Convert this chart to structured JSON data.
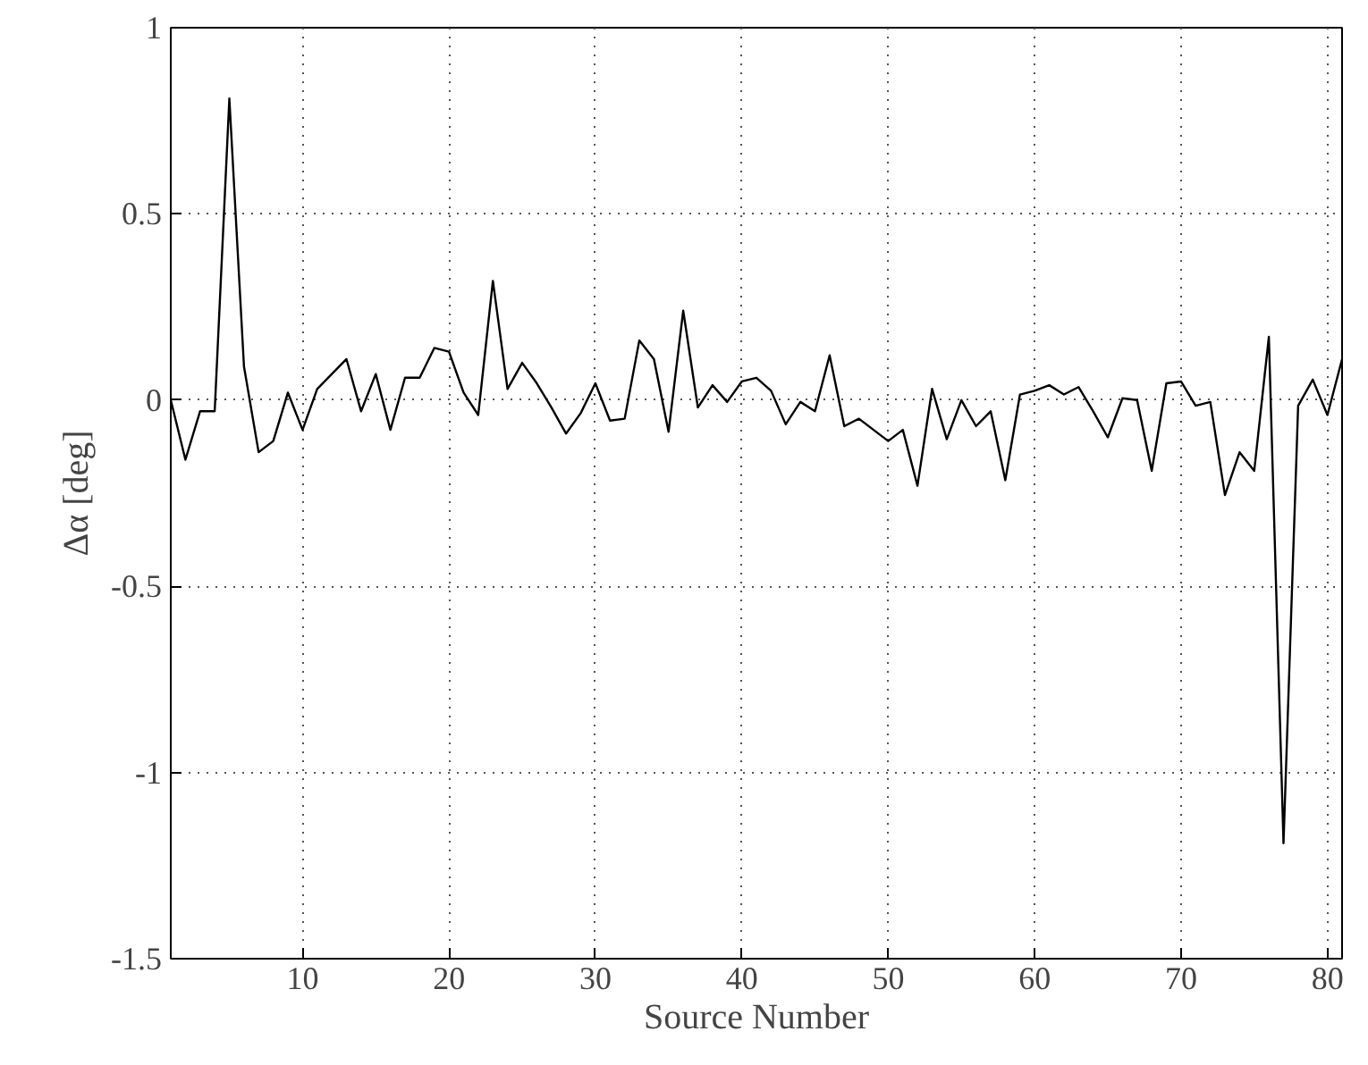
{
  "chart_data": {
    "type": "line",
    "xlabel": "Source Number",
    "ylabel": "Δα [deg]",
    "x": [
      1,
      2,
      3,
      4,
      5,
      6,
      7,
      8,
      9,
      10,
      11,
      12,
      13,
      14,
      15,
      16,
      17,
      18,
      19,
      20,
      21,
      22,
      23,
      24,
      25,
      26,
      27,
      28,
      29,
      30,
      31,
      32,
      33,
      34,
      35,
      36,
      37,
      38,
      39,
      40,
      41,
      42,
      43,
      44,
      45,
      46,
      47,
      48,
      49,
      50,
      51,
      52,
      53,
      54,
      55,
      56,
      57,
      58,
      59,
      60,
      61,
      62,
      63,
      64,
      65,
      66,
      67,
      68,
      69,
      70,
      71,
      72,
      73,
      74,
      75,
      76,
      77,
      78,
      79,
      80,
      81
    ],
    "series": [
      {
        "color": "#000000",
        "values": [
          0,
          -0.16,
          -0.03,
          -0.03,
          0.81,
          0.09,
          -0.14,
          -0.11,
          0.02,
          -0.08,
          0.03,
          0.07,
          0.11,
          -0.03,
          0.07,
          -0.08,
          0.06,
          0.06,
          0.14,
          0.13,
          0.02,
          -0.04,
          0.32,
          0.03,
          0.1,
          0.045,
          -0.02,
          -0.09,
          -0.035,
          0.045,
          -0.055,
          -0.05,
          0.16,
          0.11,
          -0.085,
          0.24,
          -0.02,
          0.04,
          -0.005,
          0.05,
          0.06,
          0.025,
          -0.065,
          -0.005,
          -0.03,
          0.12,
          -0.07,
          -0.05,
          -0.08,
          -0.11,
          -0.08,
          -0.23,
          0.03,
          -0.105,
          0,
          -0.07,
          -0.03,
          -0.215,
          0.015,
          0.025,
          0.04,
          0.015,
          0.035,
          -0.03,
          -0.1,
          0.005,
          0,
          -0.19,
          0.045,
          0.05,
          -0.015,
          -0.005,
          -0.255,
          -0.14,
          -0.19,
          0.17,
          -1.19,
          -0.015,
          0.055,
          -0.04,
          0.11
        ]
      }
    ],
    "xlim": [
      1,
      81
    ],
    "ylim": [
      -1.5,
      1
    ],
    "xticks": [
      10,
      20,
      30,
      40,
      50,
      60,
      70,
      80
    ],
    "yticks": [
      -1.5,
      -1,
      -0.5,
      0,
      0.5,
      1
    ],
    "grid": true,
    "line_style": "solid"
  }
}
